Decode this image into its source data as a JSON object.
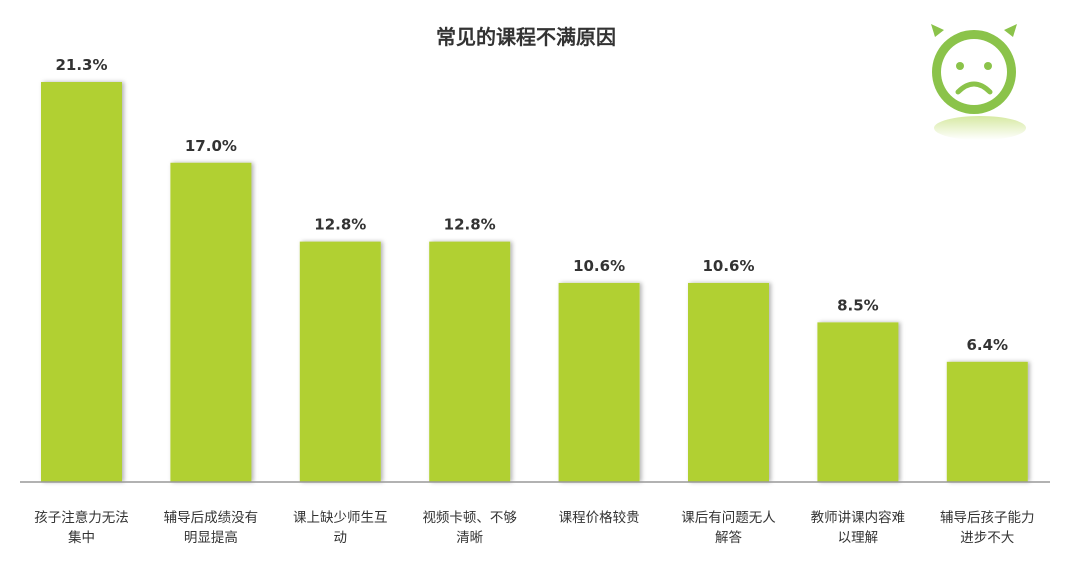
{
  "colors": {
    "bar": "#b1d033",
    "axis": "#999999",
    "text": "#333333",
    "icon": "#8bc34a"
  },
  "icon": "sad-face-icon",
  "chart_data": {
    "type": "bar",
    "title": "常见的课程不满原因",
    "xlabel": "",
    "ylabel": "",
    "ylim": [
      0,
      25
    ],
    "grid": false,
    "value_suffix": "%",
    "categories": [
      [
        "孩子注意力无法",
        "集中"
      ],
      [
        "辅导后成绩没有",
        "明显提高"
      ],
      [
        "课上缺少师生互",
        "动"
      ],
      [
        "视频卡顿、不够",
        "清晰"
      ],
      [
        "课程价格较贵"
      ],
      [
        "课后有问题无人",
        "解答"
      ],
      [
        "教师讲课内容难",
        "以理解"
      ],
      [
        "辅导后孩子能力",
        "进步不大"
      ]
    ],
    "values": [
      21.3,
      17.0,
      12.8,
      12.8,
      10.6,
      10.6,
      8.5,
      6.4
    ],
    "value_labels": [
      "21.3%",
      "17.0%",
      "12.8%",
      "12.8%",
      "10.6%",
      "10.6%",
      "8.5%",
      "6.4%"
    ]
  }
}
